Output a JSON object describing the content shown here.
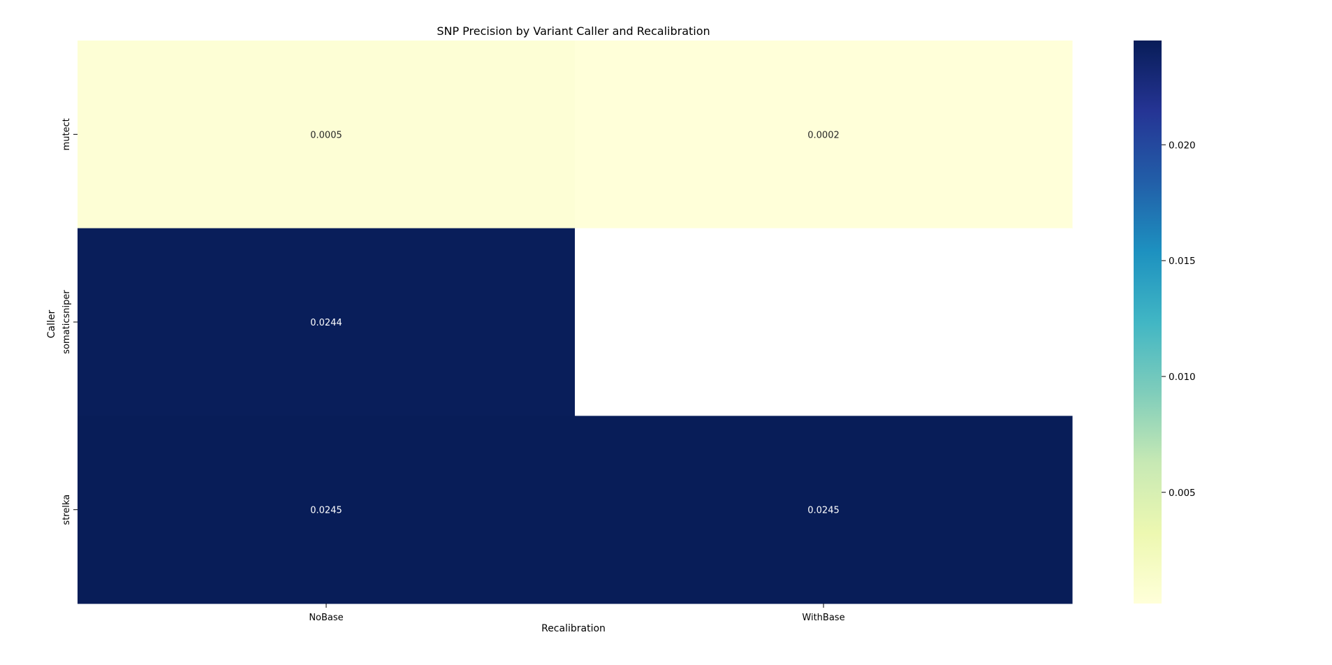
{
  "chart_data": {
    "type": "heatmap",
    "title": "SNP Precision by Variant Caller and Recalibration",
    "xlabel": "Recalibration",
    "ylabel": "Caller",
    "x_categories": [
      "NoBase",
      "WithBase"
    ],
    "y_categories": [
      "mutect",
      "somaticsniper",
      "strelka"
    ],
    "values": [
      [
        0.0005,
        0.0002
      ],
      [
        0.0244,
        null
      ],
      [
        0.0245,
        0.0245
      ]
    ],
    "cell_labels": [
      [
        "0.0005",
        "0.0002"
      ],
      [
        "0.0244",
        ""
      ],
      [
        "0.0245",
        "0.0245"
      ]
    ],
    "colormap": "YlGnBu",
    "color_range": [
      0.0002,
      0.0245
    ],
    "colorbar_ticks": [
      0.005,
      0.01,
      0.015,
      0.02
    ],
    "colorbar_tick_labels": [
      "0.005",
      "0.010",
      "0.015",
      "0.020"
    ],
    "missing_color": "#ffffff",
    "grid": false
  }
}
